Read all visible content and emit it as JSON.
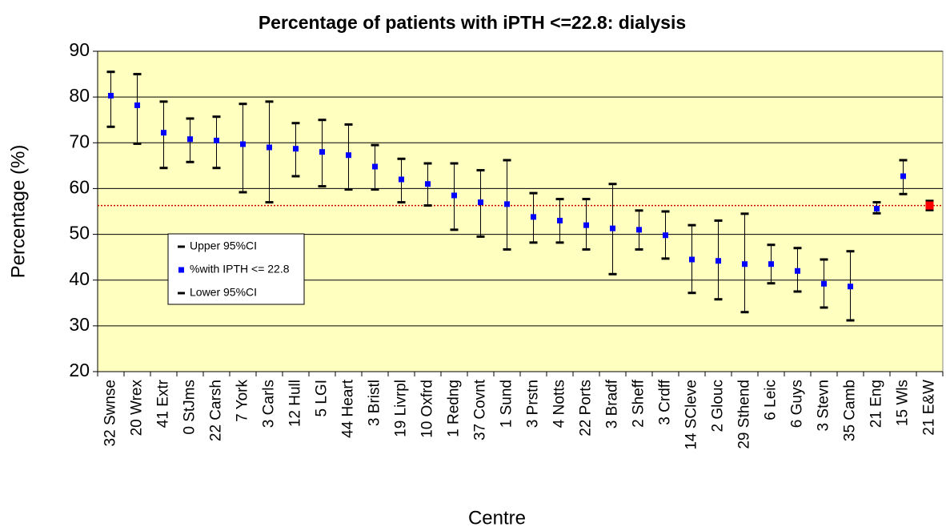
{
  "chart_data": {
    "type": "errorbar",
    "title": "Percentage of patients with iPTH <=22.8:  dialysis",
    "x_label": "Centre",
    "y_label": "Percentage (%)",
    "categories": [
      "32 Swnse",
      "20 Wrex",
      "41 Extr",
      "0 StJms",
      "22 Carsh",
      "7 York",
      "3 Carls",
      "12 Hull",
      "5 LGI",
      "44 Heart",
      "3 Bristl",
      "19 Livrpl",
      "10 Oxfrd",
      "1 Redng",
      "37 Covnt",
      "1 Sund",
      "3 Prstn",
      "4 Notts",
      "22 Ports",
      "3 Bradf",
      "2 Sheff",
      "3 Crdff",
      "14 SCleve",
      "2 Glouc",
      "29 Sthend",
      "6 Leic",
      "6 Guys",
      "3 Stevn",
      "35 Camb",
      "21 Eng",
      "15 Wls",
      "21 E&W"
    ],
    "series": [
      {
        "name": "Upper 95%CI",
        "color": "#000000",
        "values": [
          85.5,
          85,
          79,
          75.3,
          75.7,
          78.5,
          79,
          74.3,
          75,
          74,
          69.5,
          66.5,
          65.5,
          65.5,
          64,
          66.2,
          59,
          57.7,
          57.7,
          61,
          55.2,
          55,
          52,
          53,
          54.5,
          47.7,
          47,
          44.5,
          46.3,
          57,
          66.2,
          57.3
        ]
      },
      {
        "name": "%with IPTH <= 22.8",
        "color": "#0000ff",
        "colors": [
          "#0000ff",
          "#0000ff",
          "#0000ff",
          "#0000ff",
          "#0000ff",
          "#0000ff",
          "#0000ff",
          "#0000ff",
          "#0000ff",
          "#0000ff",
          "#0000ff",
          "#0000ff",
          "#0000ff",
          "#0000ff",
          "#0000ff",
          "#0000ff",
          "#0000ff",
          "#0000ff",
          "#0000ff",
          "#0000ff",
          "#0000ff",
          "#0000ff",
          "#0000ff",
          "#0000ff",
          "#0000ff",
          "#0000ff",
          "#0000ff",
          "#0000ff",
          "#0000ff",
          "#0000ff",
          "#0000ff",
          "#ff0000"
        ],
        "values": [
          80.3,
          78.2,
          72.2,
          70.8,
          70.5,
          69.7,
          69,
          68.7,
          68,
          67.3,
          64.8,
          62,
          61,
          58.5,
          57,
          56.6,
          53.8,
          53,
          52,
          51.3,
          51,
          49.8,
          44.5,
          44.2,
          43.5,
          43.5,
          42,
          39.2,
          38.6,
          55.6,
          62.7,
          56.3
        ]
      },
      {
        "name": "Lower 95%CI",
        "color": "#000000",
        "values": [
          73.5,
          69.8,
          64.5,
          65.8,
          64.5,
          59.2,
          57,
          62.7,
          60.5,
          59.8,
          59.8,
          57,
          56.3,
          51,
          49.5,
          46.7,
          48.2,
          48.2,
          46.7,
          41.3,
          46.7,
          44.7,
          37.2,
          35.8,
          33,
          39.3,
          37.5,
          34,
          31.2,
          54.6,
          58.8,
          55.3
        ]
      }
    ],
    "reference_line": {
      "value": 56.3,
      "color": "#cc0000"
    },
    "plot_background": "#ffffc0",
    "ylim": [
      20,
      90
    ],
    "yticks": [
      20,
      30,
      40,
      50,
      60,
      70,
      80,
      90
    ],
    "grid": true
  }
}
